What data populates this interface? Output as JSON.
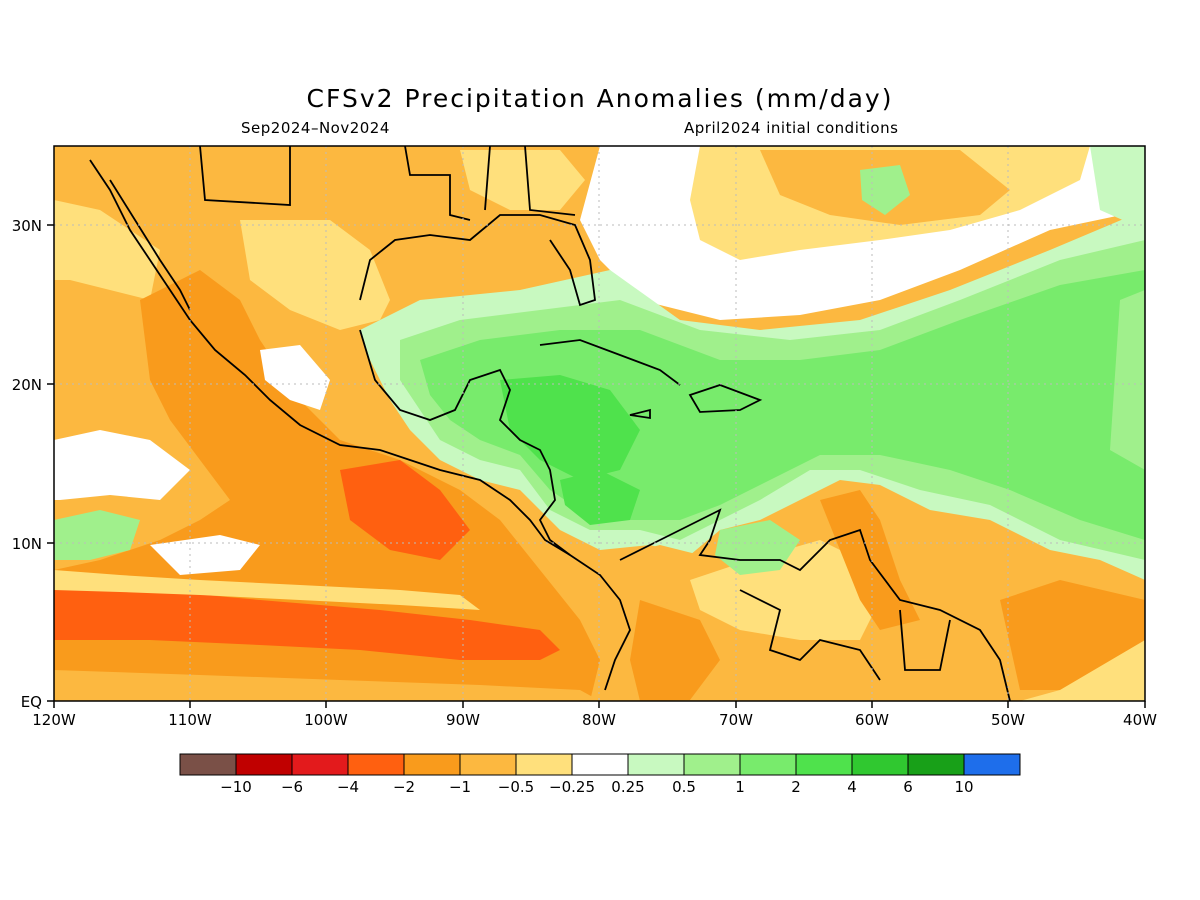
{
  "title": "CFSv2 Precipitation Anomalies (mm/day)",
  "subtitle_left": "Sep2024–Nov2024",
  "subtitle_right": "April2024 initial conditions",
  "axes": {
    "x_ticks": [
      "120W",
      "110W",
      "100W",
      "90W",
      "80W",
      "70W",
      "60W",
      "50W",
      "40W"
    ],
    "y_ticks": [
      "30N",
      "20N",
      "10N",
      "EQ"
    ]
  },
  "colorbar": {
    "colors": [
      "#7a5047",
      "#c00000",
      "#e31a1c",
      "#ff6010",
      "#f99b1c",
      "#fcb840",
      "#ffe07c",
      "#ffffff",
      "#c8f9c0",
      "#a0f08c",
      "#78eb6c",
      "#4fe24c",
      "#30c830",
      "#18a018",
      "#1e6eeb"
    ],
    "labels": [
      "−10",
      "−6",
      "−4",
      "−2",
      "−1",
      "−0.5",
      "−0.25",
      "0.25",
      "0.5",
      "1",
      "2",
      "4",
      "6",
      "10"
    ]
  }
}
